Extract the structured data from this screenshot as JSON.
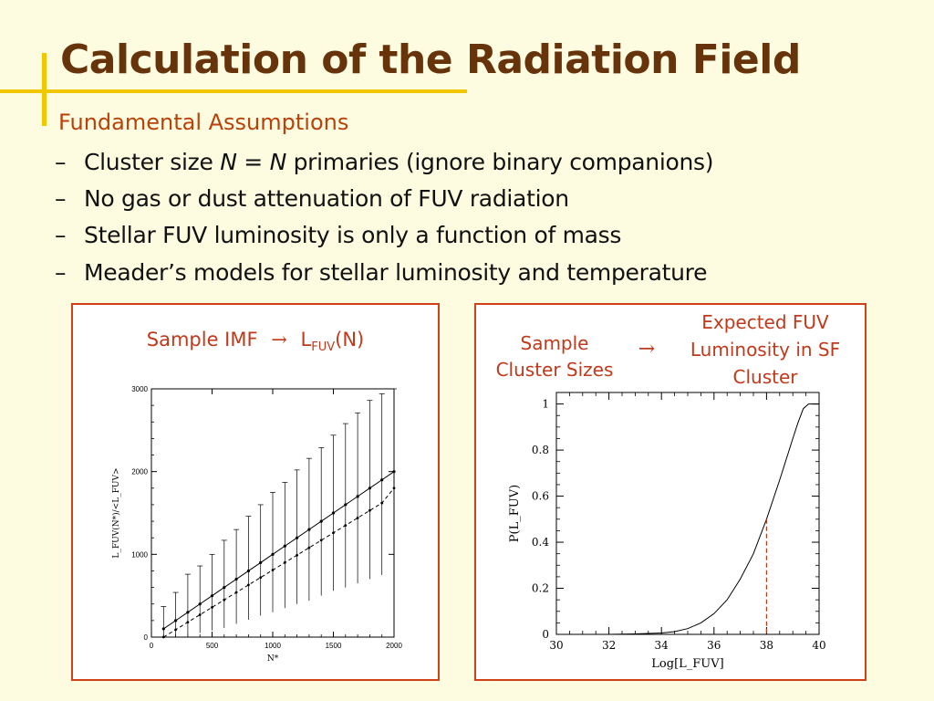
{
  "slide": {
    "title": "Calculation of the Radiation Field",
    "subtitle": "Fundamental Assumptions",
    "bullets": [
      {
        "dash": "–",
        "pre": "Cluster size ",
        "italic1": "N",
        "mid": " = ",
        "italic2": "N",
        "post": " primaries (ignore binary companions)"
      },
      {
        "dash": "–",
        "text": "No gas or dust attenuation of FUV radiation"
      },
      {
        "dash": "–",
        "text": "Stellar FUV luminosity is only a function of mass"
      },
      {
        "dash": "–",
        "text": "Meader’s models for stellar luminosity and temperature"
      }
    ],
    "colors": {
      "title": "#66330a",
      "subtitle": "#b8420a",
      "accent_bar": "#f1c800",
      "panel_border": "#d0411a",
      "background": "#fdfbe0"
    }
  },
  "left_panel": {
    "caption_pre": "Sample IMF",
    "arrow": "→",
    "caption_L": "L",
    "caption_sub": "FUV",
    "caption_post": "(N)"
  },
  "right_panel": {
    "caption_left": [
      "Sample",
      "Cluster Sizes"
    ],
    "arrow": "→",
    "caption_right": [
      "Expected FUV",
      "Luminosity in SF",
      "Cluster"
    ]
  },
  "chart_data": [
    {
      "type": "line",
      "xlabel": "N*",
      "ylabel": "L_FUV(N*)/<L_FUV>",
      "xlim": [
        0,
        2000
      ],
      "ylim": [
        0,
        3000
      ],
      "x_ticks": [
        "0",
        "500",
        "1000",
        "1500",
        "2000"
      ],
      "y_ticks": [
        "0",
        "1000",
        "2000",
        "3000"
      ],
      "x": [
        100,
        200,
        300,
        400,
        500,
        600,
        700,
        800,
        900,
        1000,
        1100,
        1200,
        1300,
        1400,
        1500,
        1600,
        1700,
        1800,
        1900,
        2000
      ],
      "series": [
        {
          "style": "solid",
          "values": [
            100,
            200,
            300,
            400,
            500,
            600,
            700,
            800,
            900,
            1000,
            1100,
            1200,
            1300,
            1400,
            1500,
            1600,
            1700,
            1800,
            1900,
            2000
          ],
          "error_low": [
            0,
            0,
            20,
            50,
            80,
            110,
            160,
            210,
            260,
            300,
            350,
            400,
            440,
            500,
            560,
            600,
            650,
            700,
            750,
            800
          ],
          "error_high": [
            370,
            540,
            760,
            860,
            1000,
            1170,
            1300,
            1460,
            1600,
            1750,
            1870,
            2020,
            2160,
            2290,
            2440,
            2580,
            2710,
            2860,
            2940,
            3000
          ]
        },
        {
          "style": "dashed",
          "values": [
            0,
            90,
            180,
            270,
            360,
            450,
            540,
            630,
            720,
            810,
            900,
            990,
            1080,
            1170,
            1260,
            1350,
            1440,
            1530,
            1620,
            1800
          ]
        }
      ]
    },
    {
      "type": "line",
      "xlabel": "Log[L_FUV]",
      "ylabel": "P(L_FUV)",
      "xlim": [
        30,
        40
      ],
      "ylim": [
        0,
        1.05
      ],
      "x_ticks": [
        "30",
        "32",
        "34",
        "36",
        "38",
        "40"
      ],
      "y_ticks": [
        "0",
        "0.2",
        "0.4",
        "0.6",
        "0.8",
        "1"
      ],
      "x": [
        32,
        33,
        34,
        34.5,
        35,
        35.5,
        36,
        36.5,
        37,
        37.5,
        38,
        38.5,
        39,
        39.2,
        39.4,
        39.6,
        40
      ],
      "values": [
        0.0,
        0.002,
        0.006,
        0.012,
        0.025,
        0.05,
        0.09,
        0.15,
        0.24,
        0.35,
        0.5,
        0.67,
        0.85,
        0.92,
        0.98,
        1.0,
        1.0
      ],
      "marker_x": 38,
      "marker_y": 0.5,
      "marker_color": "#c0391b"
    }
  ]
}
